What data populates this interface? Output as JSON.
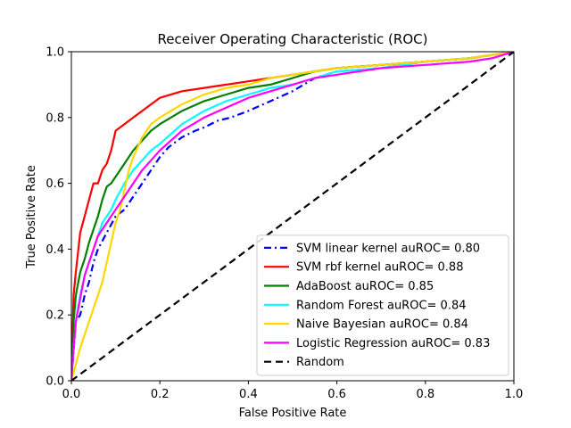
{
  "chart_data": {
    "type": "line",
    "title": "Receiver Operating Characteristic (ROC)",
    "xlabel": "False Positive Rate",
    "ylabel": "True Positive Rate",
    "xlim": [
      0,
      1
    ],
    "ylim": [
      0,
      1
    ],
    "xticks": [
      "0.0",
      "0.2",
      "0.4",
      "0.6",
      "0.8",
      "1.0"
    ],
    "yticks": [
      "0.0",
      "0.2",
      "0.4",
      "0.6",
      "0.8",
      "1.0"
    ],
    "grid": false,
    "legend_position": "lower-right",
    "series": [
      {
        "name": "SVM linear kernel auROC= 0.80",
        "color": "#0000ff",
        "dash": "dashdot",
        "x": [
          0,
          0.01,
          0.02,
          0.03,
          0.04,
          0.05,
          0.06,
          0.08,
          0.1,
          0.12,
          0.14,
          0.16,
          0.18,
          0.2,
          0.22,
          0.25,
          0.28,
          0.3,
          0.33,
          0.36,
          0.4,
          0.45,
          0.5,
          0.55,
          0.6,
          0.7,
          0.8,
          0.9,
          0.95,
          1
        ],
        "y": [
          0,
          0.18,
          0.2,
          0.26,
          0.3,
          0.36,
          0.4,
          0.45,
          0.5,
          0.52,
          0.56,
          0.6,
          0.64,
          0.68,
          0.71,
          0.74,
          0.76,
          0.77,
          0.79,
          0.8,
          0.82,
          0.85,
          0.88,
          0.92,
          0.94,
          0.95,
          0.97,
          0.98,
          0.99,
          1
        ]
      },
      {
        "name": "SVM rbf kernel auROC= 0.88",
        "color": "#ff0000",
        "dash": "solid",
        "x": [
          0,
          0.005,
          0.01,
          0.02,
          0.03,
          0.04,
          0.05,
          0.06,
          0.07,
          0.08,
          0.09,
          0.1,
          0.12,
          0.14,
          0.16,
          0.18,
          0.2,
          0.25,
          0.3,
          0.35,
          0.4,
          0.45,
          0.5,
          0.55,
          0.6,
          0.7,
          0.8,
          0.9,
          0.95,
          1
        ],
        "y": [
          0,
          0.26,
          0.33,
          0.45,
          0.5,
          0.55,
          0.6,
          0.6,
          0.64,
          0.66,
          0.7,
          0.76,
          0.78,
          0.8,
          0.82,
          0.84,
          0.86,
          0.88,
          0.89,
          0.9,
          0.91,
          0.92,
          0.93,
          0.94,
          0.95,
          0.96,
          0.97,
          0.98,
          0.99,
          1
        ]
      },
      {
        "name": "AdaBoost auROC= 0.85",
        "color": "#008000",
        "dash": "solid",
        "x": [
          0,
          0.005,
          0.01,
          0.02,
          0.03,
          0.04,
          0.05,
          0.06,
          0.07,
          0.08,
          0.09,
          0.1,
          0.12,
          0.14,
          0.16,
          0.18,
          0.2,
          0.25,
          0.3,
          0.35,
          0.4,
          0.45,
          0.5,
          0.55,
          0.6,
          0.7,
          0.8,
          0.9,
          0.95,
          1
        ],
        "y": [
          0,
          0.18,
          0.26,
          0.33,
          0.37,
          0.42,
          0.46,
          0.5,
          0.55,
          0.59,
          0.6,
          0.62,
          0.66,
          0.7,
          0.73,
          0.76,
          0.78,
          0.82,
          0.85,
          0.87,
          0.89,
          0.9,
          0.92,
          0.94,
          0.95,
          0.96,
          0.97,
          0.98,
          0.99,
          1
        ]
      },
      {
        "name": "Random Forest auROC= 0.84",
        "color": "#00ffff",
        "dash": "solid",
        "x": [
          0,
          0.005,
          0.01,
          0.02,
          0.03,
          0.04,
          0.05,
          0.06,
          0.07,
          0.08,
          0.09,
          0.1,
          0.12,
          0.14,
          0.16,
          0.18,
          0.2,
          0.25,
          0.3,
          0.35,
          0.4,
          0.45,
          0.5,
          0.55,
          0.6,
          0.7,
          0.8,
          0.9,
          0.95,
          1
        ],
        "y": [
          0,
          0.1,
          0.18,
          0.26,
          0.32,
          0.36,
          0.4,
          0.44,
          0.48,
          0.5,
          0.52,
          0.55,
          0.6,
          0.64,
          0.67,
          0.7,
          0.72,
          0.78,
          0.82,
          0.85,
          0.87,
          0.89,
          0.9,
          0.92,
          0.94,
          0.95,
          0.97,
          0.98,
          0.99,
          1
        ]
      },
      {
        "name": "Naive Bayesian auROC= 0.84",
        "color": "#ffd700",
        "dash": "solid",
        "x": [
          0,
          0.01,
          0.02,
          0.03,
          0.04,
          0.05,
          0.06,
          0.07,
          0.08,
          0.09,
          0.1,
          0.11,
          0.12,
          0.13,
          0.14,
          0.16,
          0.18,
          0.2,
          0.25,
          0.3,
          0.35,
          0.4,
          0.45,
          0.5,
          0.55,
          0.6,
          0.7,
          0.8,
          0.9,
          1
        ],
        "y": [
          0,
          0.05,
          0.1,
          0.14,
          0.18,
          0.22,
          0.26,
          0.3,
          0.36,
          0.42,
          0.48,
          0.52,
          0.58,
          0.64,
          0.68,
          0.74,
          0.78,
          0.8,
          0.84,
          0.87,
          0.89,
          0.9,
          0.92,
          0.93,
          0.94,
          0.95,
          0.96,
          0.97,
          0.98,
          1
        ]
      },
      {
        "name": "Logistic Regression auROC= 0.83",
        "color": "#ff00ff",
        "dash": "solid",
        "x": [
          0,
          0.005,
          0.01,
          0.02,
          0.03,
          0.04,
          0.05,
          0.06,
          0.07,
          0.08,
          0.09,
          0.1,
          0.12,
          0.14,
          0.16,
          0.18,
          0.2,
          0.25,
          0.3,
          0.35,
          0.4,
          0.45,
          0.5,
          0.55,
          0.6,
          0.7,
          0.8,
          0.9,
          0.95,
          1
        ],
        "y": [
          0,
          0.1,
          0.18,
          0.25,
          0.32,
          0.36,
          0.4,
          0.44,
          0.46,
          0.48,
          0.5,
          0.52,
          0.56,
          0.6,
          0.64,
          0.67,
          0.7,
          0.76,
          0.8,
          0.83,
          0.86,
          0.88,
          0.9,
          0.92,
          0.93,
          0.95,
          0.96,
          0.97,
          0.98,
          1
        ]
      },
      {
        "name": "Random",
        "color": "#000000",
        "dash": "dashed",
        "x": [
          0,
          1
        ],
        "y": [
          0,
          1
        ]
      }
    ]
  }
}
